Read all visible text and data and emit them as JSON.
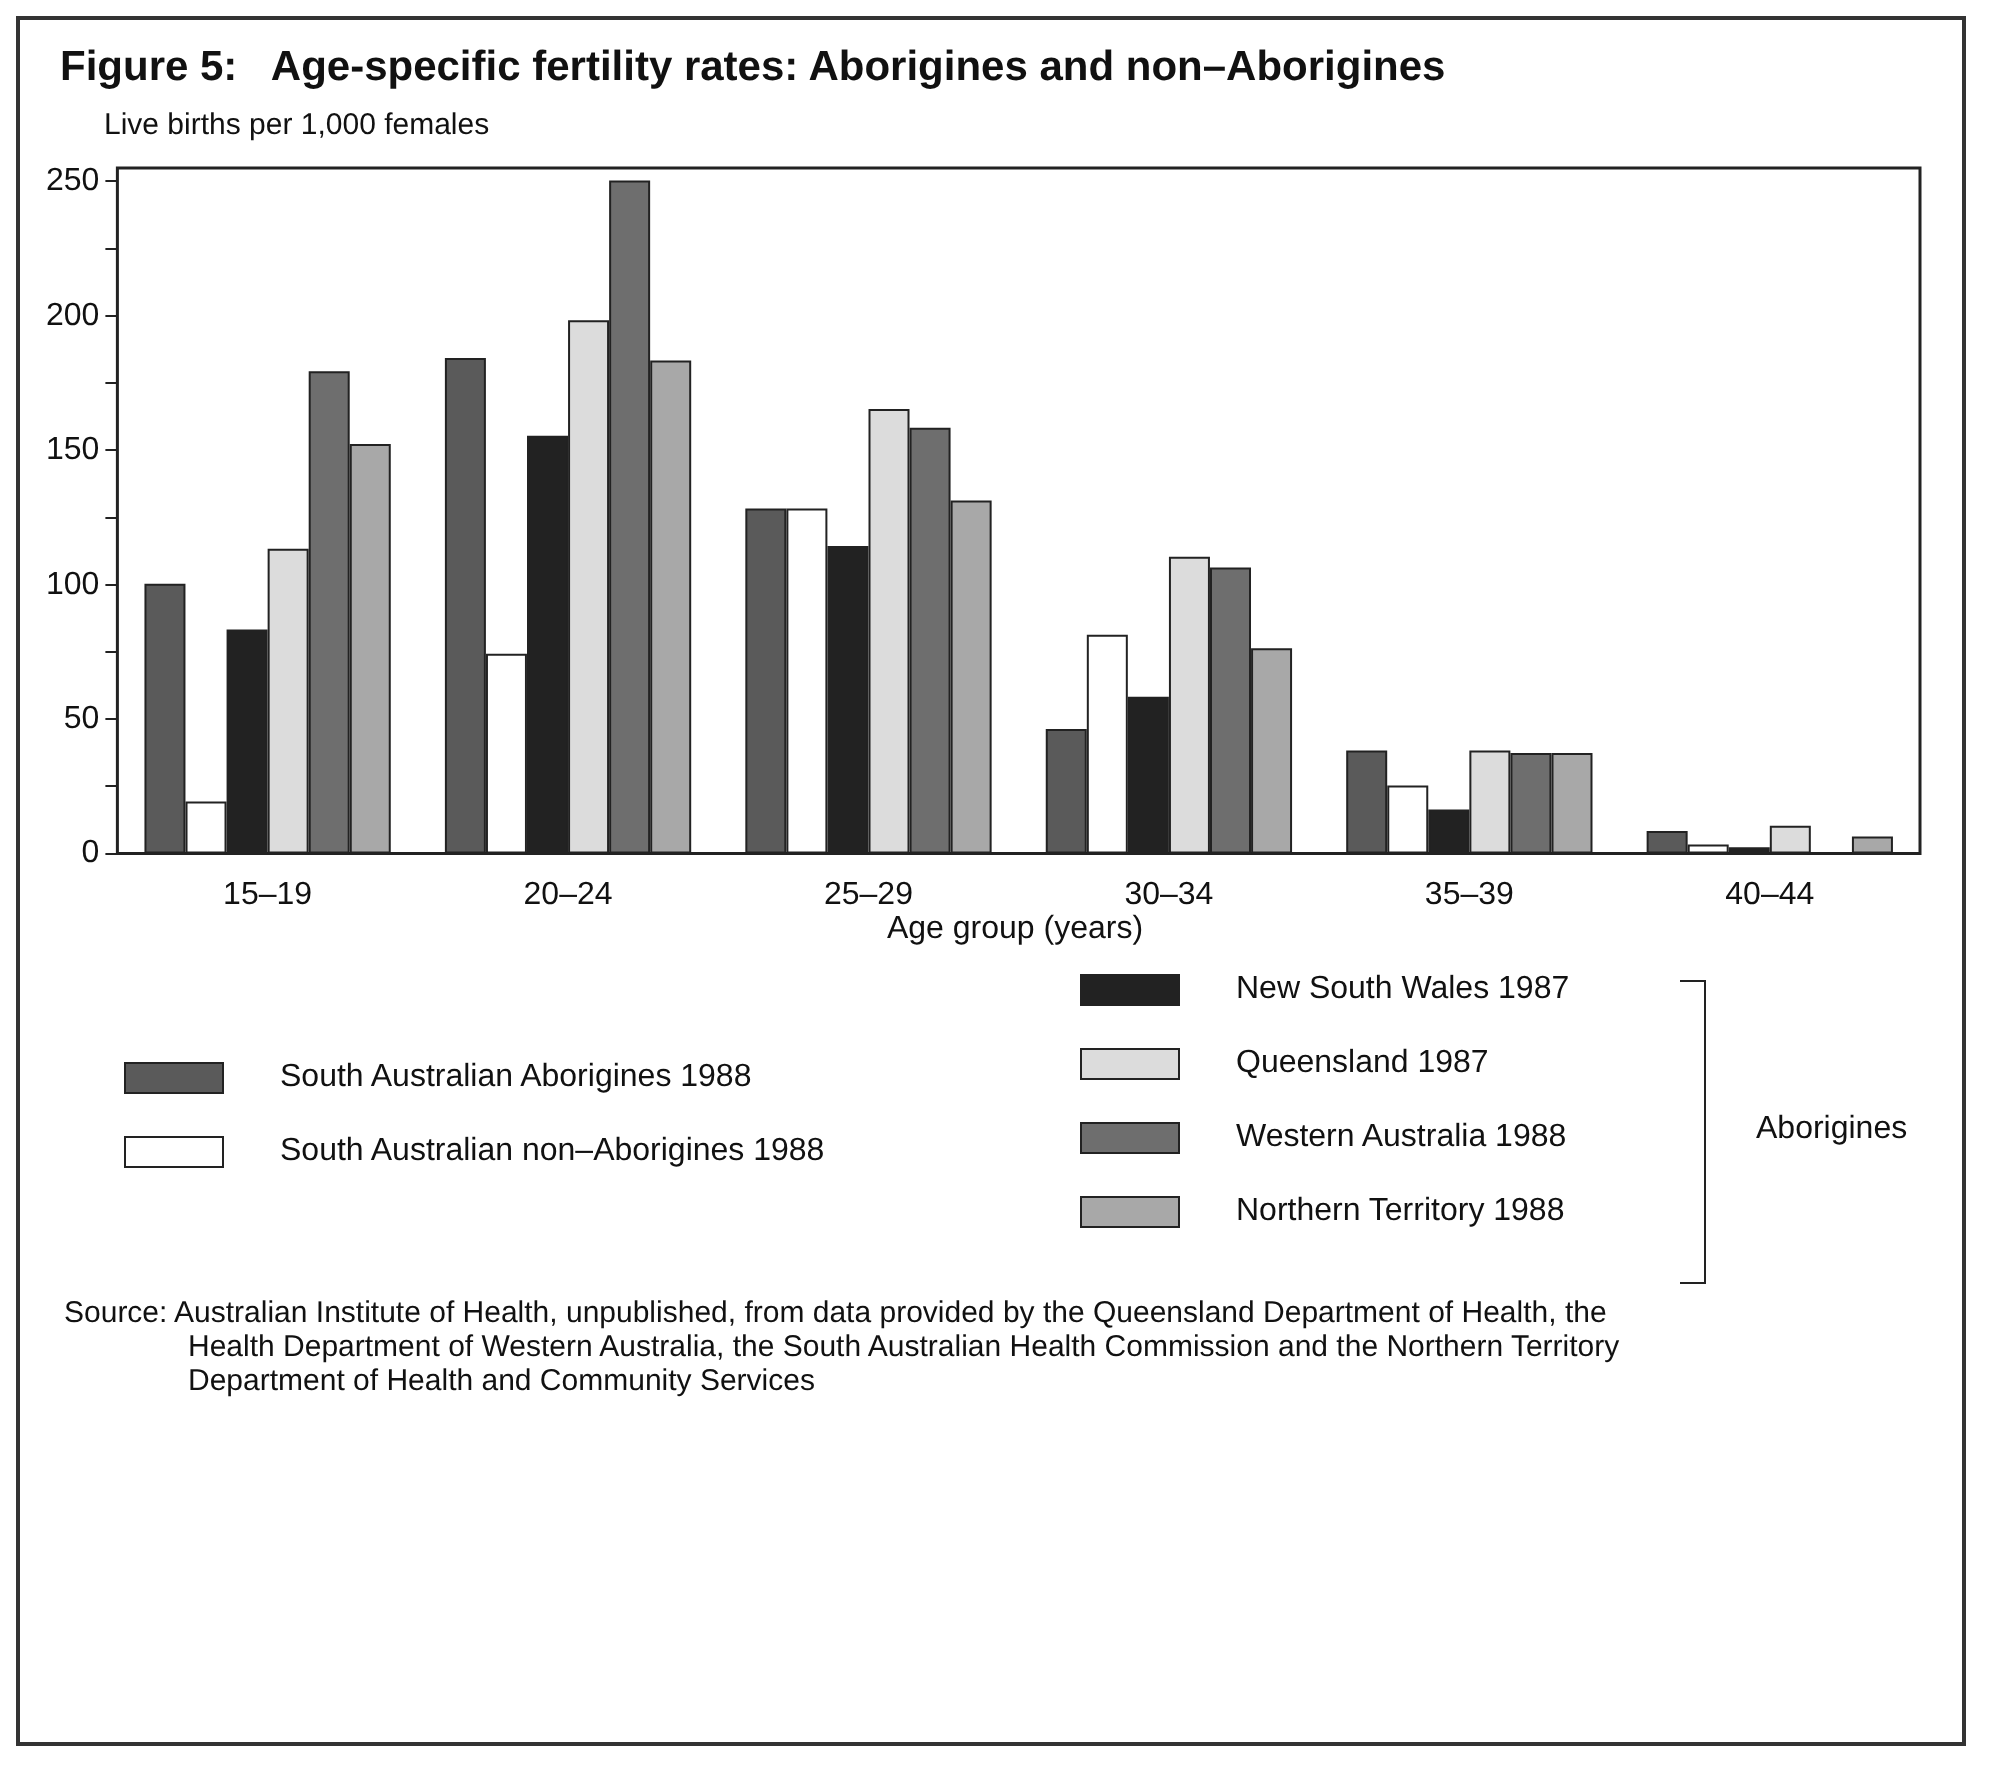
{
  "chart_data": {
    "type": "bar",
    "title": "Figure 5:   Age-specific fertility rates: Aborigines and non–Aborigines",
    "ylabel": "Live births per 1,000 females",
    "xlabel": "Age group (years)",
    "categories": [
      "15–19",
      "20–24",
      "25–29",
      "30–34",
      "35–39",
      "40–44"
    ],
    "series": [
      {
        "name": "South Australian Aborigines 1988",
        "color": "#5a5a5a",
        "values": [
          100,
          184,
          128,
          46,
          38,
          8
        ]
      },
      {
        "name": "South Australian non–Aborigines 1988",
        "color": "#ffffff",
        "values": [
          19,
          74,
          128,
          81,
          25,
          3
        ]
      },
      {
        "name": "New South Wales 1987",
        "color": "#222222",
        "values": [
          83,
          155,
          114,
          58,
          16,
          2
        ]
      },
      {
        "name": "Queensland 1987",
        "color": "#dcdcdc",
        "values": [
          113,
          198,
          165,
          110,
          38,
          10
        ]
      },
      {
        "name": "Western Australia 1988",
        "color": "#6e6e6e",
        "values": [
          179,
          250,
          158,
          106,
          37,
          null
        ]
      },
      {
        "name": "Northern Territory 1988",
        "color": "#a8a8a8",
        "values": [
          152,
          183,
          131,
          76,
          37,
          6
        ]
      }
    ],
    "ylim": [
      0,
      255
    ],
    "yticks": [
      0,
      {
        "value": 25,
        "label": null
      },
      50,
      {
        "value": 75,
        "label": null
      },
      100,
      {
        "value": 125,
        "label": null
      },
      150,
      {
        "value": 175,
        "label": null
      },
      200,
      {
        "value": 225,
        "label": null
      },
      250
    ],
    "grid": false,
    "legend": "bottom",
    "legend_title": "Aborigines",
    "annotations": [
      "Source: Australian Institute of Health, unpublished, from data provided by the Queensland Department of Health, the Health Department of Western Australia, the South Australian Health Commission and the Northern Territory Department of Health and Community Services"
    ]
  }
}
